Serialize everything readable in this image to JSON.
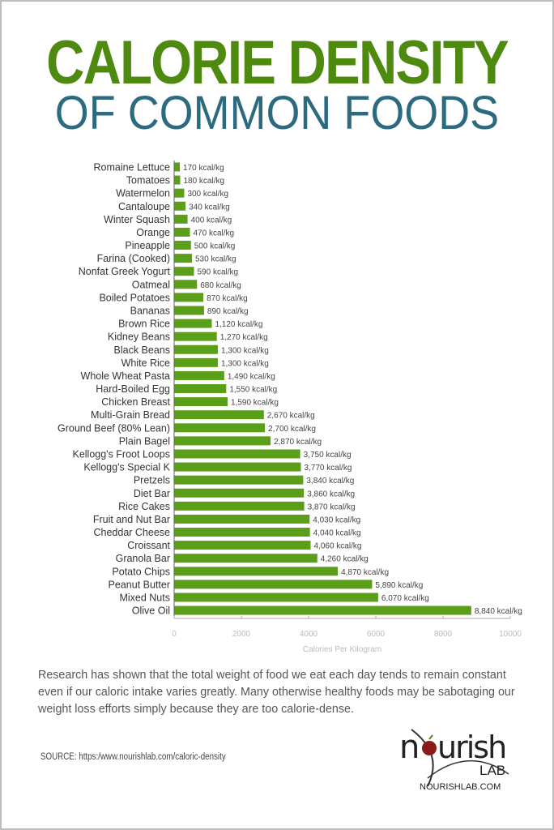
{
  "title": {
    "line1": "CALORIE DENSITY",
    "line2": "OF COMMON FOODS"
  },
  "colors": {
    "title": "#4f8a10",
    "subtitle": "#2c6a80",
    "bar": "#5a9e1a",
    "text": "#555555"
  },
  "chart_data": {
    "type": "bar",
    "orientation": "horizontal",
    "xlabel": "Calories Per Kilogram",
    "xlim": [
      0,
      10000
    ],
    "xticks": [
      "0",
      "2000",
      "4000",
      "6000",
      "8000",
      "10000"
    ],
    "grid": false,
    "unit_suffix": " kcal/kg",
    "categories": [
      "Romaine Lettuce",
      "Tomatoes",
      "Watermelon",
      "Cantaloupe",
      "Winter Squash",
      "Orange",
      "Pineapple",
      "Farina (Cooked)",
      "Nonfat Greek Yogurt",
      "Oatmeal",
      "Boiled Potatoes",
      "Bananas",
      "Brown Rice",
      "Kidney Beans",
      "Black Beans",
      "White Rice",
      "Whole Wheat Pasta",
      "Hard-Boiled Egg",
      "Chicken Breast",
      "Multi-Grain Bread",
      "Ground Beef (80% Lean)",
      "Plain Bagel",
      "Kellogg's Froot Loops",
      "Kellogg's Special K",
      "Pretzels",
      "Diet Bar",
      "Rice Cakes",
      "Fruit and Nut Bar",
      "Cheddar Cheese",
      "Croissant",
      "Granola Bar",
      "Potato Chips",
      "Peanut Butter",
      "Mixed Nuts",
      "Olive Oil"
    ],
    "values": [
      170,
      180,
      300,
      340,
      400,
      470,
      500,
      530,
      590,
      680,
      870,
      890,
      1120,
      1270,
      1300,
      1300,
      1490,
      1550,
      1590,
      2670,
      2700,
      2870,
      3750,
      3770,
      3840,
      3860,
      3870,
      4030,
      4040,
      4060,
      4260,
      4870,
      5890,
      6070,
      8840
    ],
    "value_labels": [
      "170 kcal/kg",
      "180 kcal/kg",
      "300 kcal/kg",
      "340 kcal/kg",
      "400 kcal/kg",
      "470 kcal/kg",
      "500 kcal/kg",
      "530 kcal/kg",
      "590 kcal/kg",
      "680 kcal/kg",
      "870 kcal/kg",
      "890 kcal/kg",
      "1,120 kcal/kg",
      "1,270 kcal/kg",
      "1,300 kcal/kg",
      "1,300 kcal/kg",
      "1,490 kcal/kg",
      "1,550 kcal/kg",
      "1,590 kcal/kg",
      "2,670 kcal/kg",
      "2,700 kcal/kg",
      "2,870 kcal/kg",
      "3,750 kcal/kg",
      "3,770 kcal/kg",
      "3,840 kcal/kg",
      "3,860 kcal/kg",
      "3,870 kcal/kg",
      "4,030 kcal/kg",
      "4,040 kcal/kg",
      "4,060 kcal/kg",
      "4,260 kcal/kg",
      "4,870 kcal/kg",
      "5,890 kcal/kg",
      "6,070 kcal/kg",
      "8,840 kcal/kg"
    ]
  },
  "description": "Research has shown that the total weight of food we eat each day tends to remain constant even if our caloric intake varies greatly.  Many otherwise healthy foods may be sabotaging our weight loss efforts simply because they are too calorie-dense.",
  "source": "SOURCE: https:/www.nourishlab.com/caloric-density",
  "logo": {
    "name": "nourish",
    "sub": "LAB",
    "url": "NourishLab.com"
  }
}
